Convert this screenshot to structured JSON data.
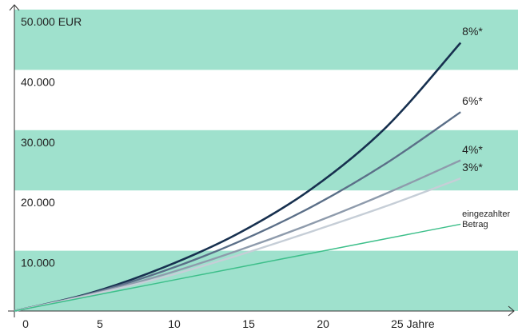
{
  "chart_data": {
    "type": "line",
    "x": [
      0,
      5,
      10,
      15,
      20,
      25,
      30
    ],
    "series": [
      {
        "name": "8%*",
        "color": "#17304f",
        "values": [
          0,
          2900,
          7200,
          12800,
          20300,
          30500,
          44500
        ]
      },
      {
        "name": "6%*",
        "color": "#5b6f88",
        "values": [
          0,
          2800,
          6600,
          11400,
          17300,
          24500,
          33000
        ]
      },
      {
        "name": "4%*",
        "color": "#8e9bac",
        "values": [
          0,
          2700,
          6000,
          10000,
          14500,
          19500,
          25000
        ]
      },
      {
        "name": "3%*",
        "color": "#c6ced7",
        "values": [
          0,
          2600,
          5600,
          9200,
          13200,
          17400,
          22000
        ]
      },
      {
        "name": "eingezahlter Betrag",
        "color": "#3dbf8a",
        "values": [
          0,
          2400,
          4800,
          7200,
          9600,
          12000,
          14400
        ]
      }
    ],
    "xlim": [
      0,
      33
    ],
    "xticks": [
      0,
      5,
      10,
      15,
      20,
      {
        "value": 25,
        "label": "25 Jahre"
      }
    ],
    "ylim": [
      0,
      50000
    ],
    "yticks": [
      {
        "value": 0,
        "label": ""
      },
      {
        "value": 10000,
        "label": "10.000"
      },
      {
        "value": 20000,
        "label": "20.000"
      },
      {
        "value": 30000,
        "label": "30.000"
      },
      {
        "value": 40000,
        "label": "40.000"
      },
      {
        "value": 50000,
        "label": "50.000 EUR"
      }
    ],
    "band_color": "#9fe1cd"
  }
}
